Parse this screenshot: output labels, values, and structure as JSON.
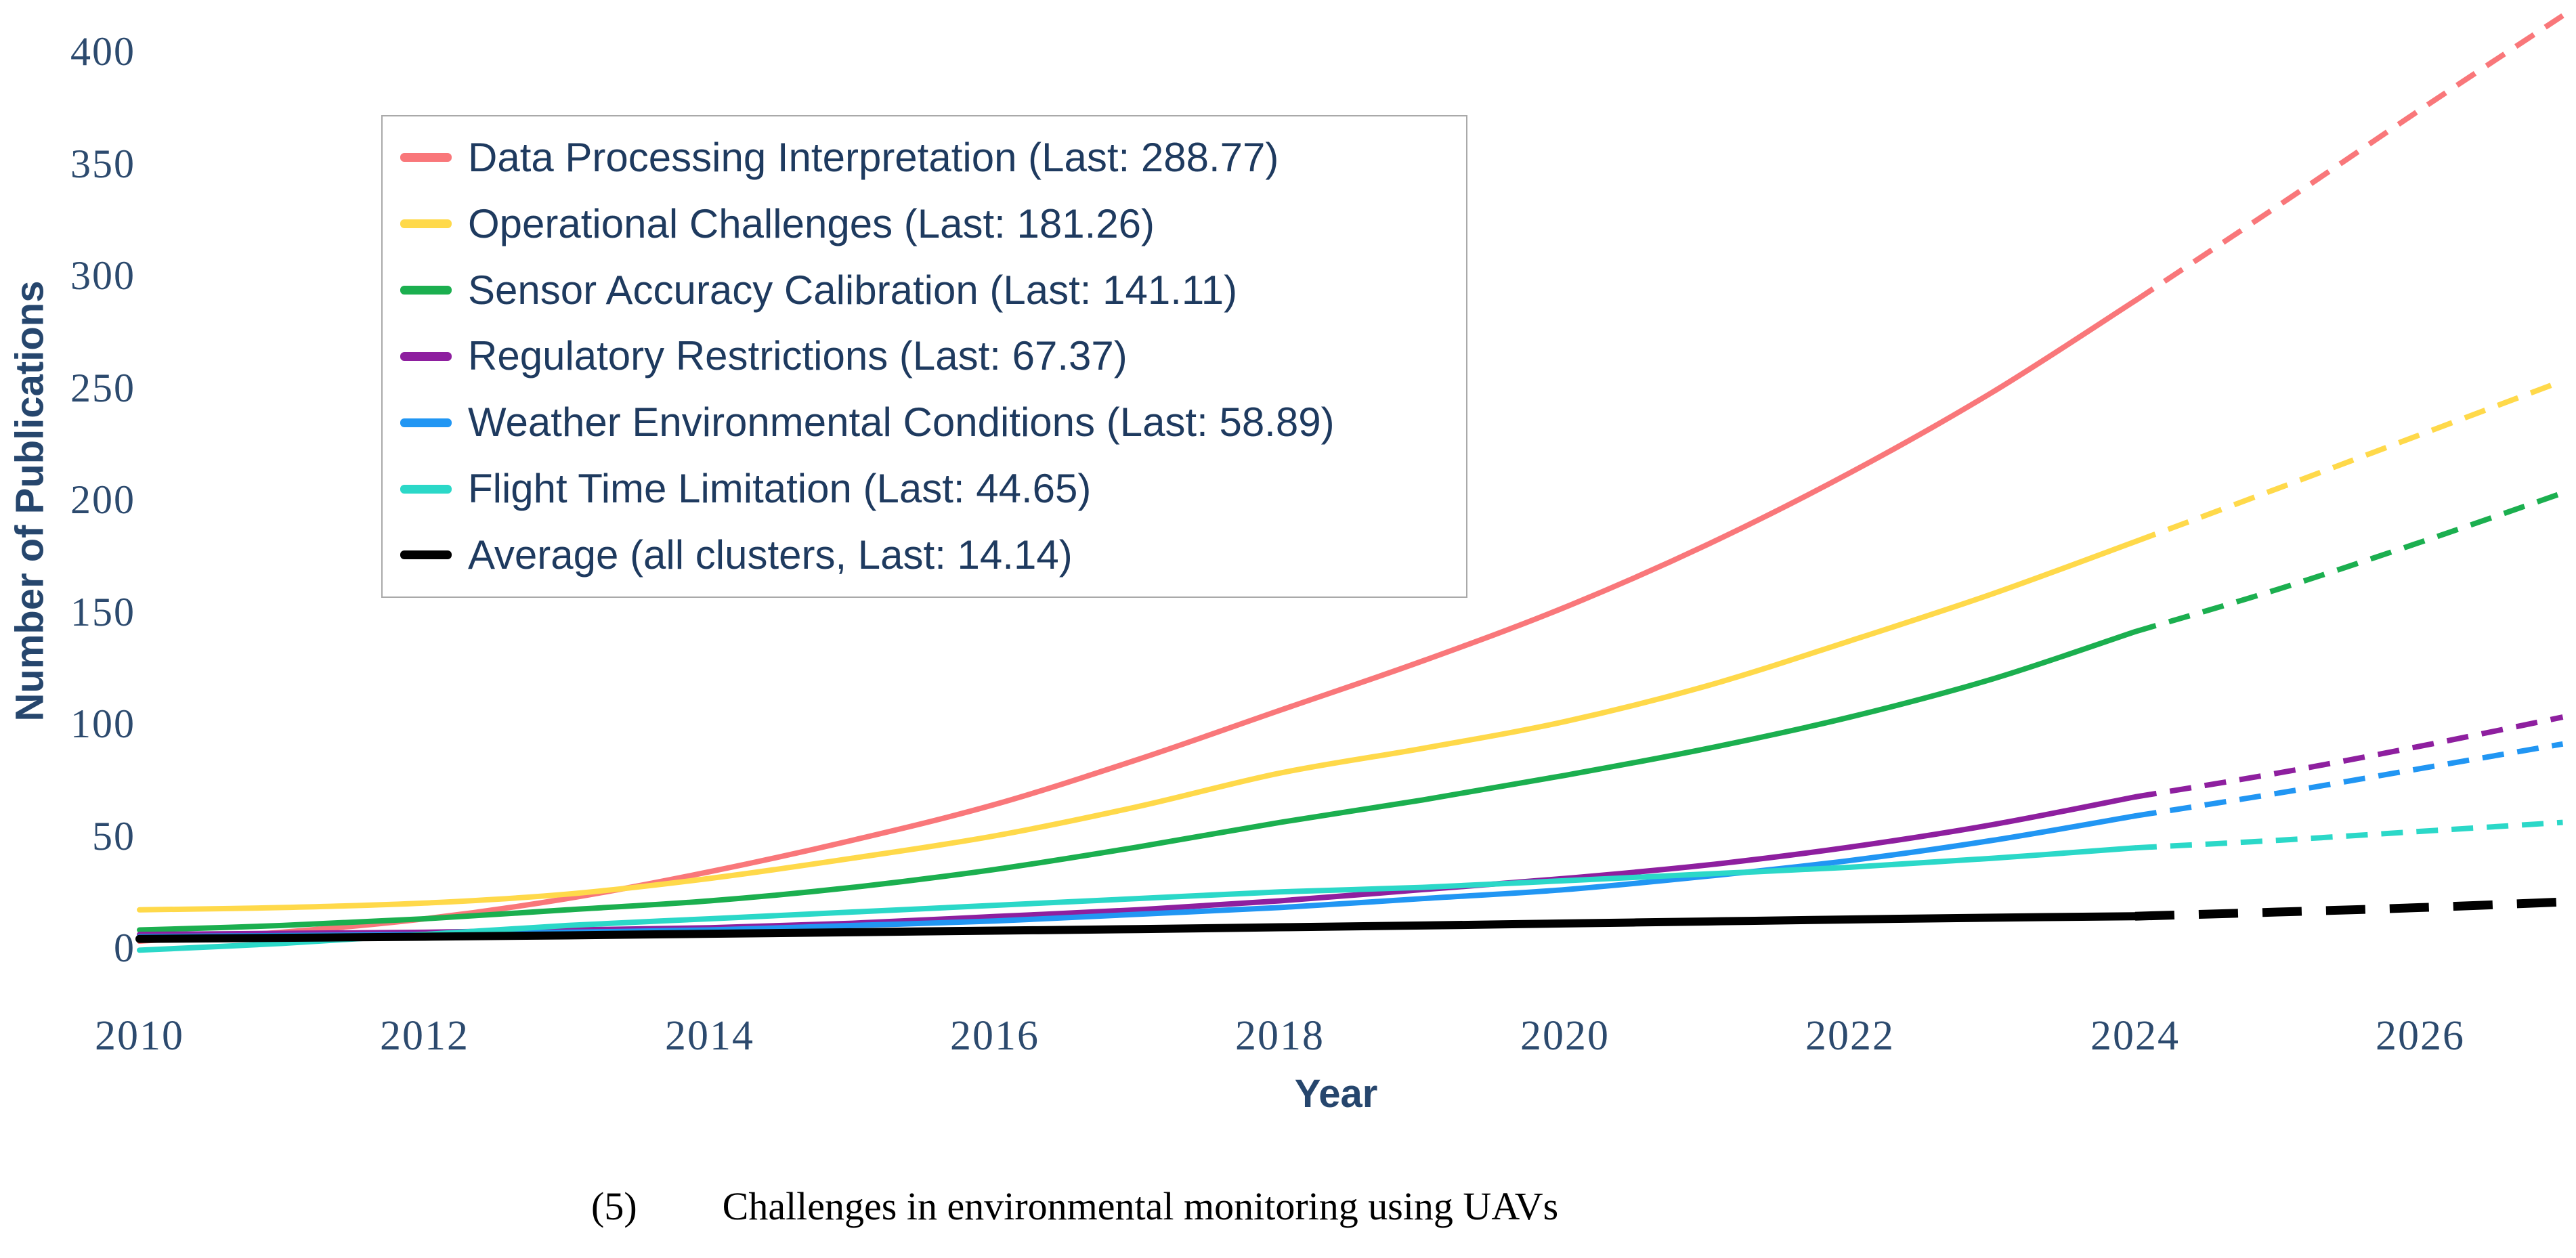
{
  "figure": {
    "caption": {
      "number": "(5)",
      "text": "Challenges in environmental monitoring using UAVs"
    }
  },
  "chart_data": {
    "type": "line",
    "title": "",
    "xlabel": "Year",
    "ylabel": "Number of Publications",
    "grid": false,
    "legend_position": "upper-left",
    "xlim": [
      2010,
      2027.1
    ],
    "ylim": [
      -8,
      420
    ],
    "x_ticks": [
      2010,
      2012,
      2014,
      2016,
      2018,
      2020,
      2022,
      2024,
      2026
    ],
    "y_ticks": [
      0,
      50,
      100,
      150,
      200,
      250,
      300,
      350,
      400
    ],
    "years_solid": [
      2010,
      2011,
      2012,
      2013,
      2014,
      2015,
      2016,
      2017,
      2018,
      2019,
      2020,
      2021,
      2022,
      2023,
      2024
    ],
    "years_forecast": [
      2024,
      2025,
      2026,
      2027
    ],
    "series": [
      {
        "name": "Data Processing Interpretation",
        "legend_label": "Data Processing Interpretation (Last: 288.77)",
        "color": "#F9777A",
        "last": 288.77,
        "thick": false,
        "values": [
          3,
          7,
          13,
          22,
          34,
          48,
          64,
          84,
          106,
          128,
          152,
          180,
          212,
          248,
          288.77
        ],
        "forecast": [
          288.77,
          331,
          374,
          416
        ]
      },
      {
        "name": "Operational Challenges",
        "legend_label": "Operational Challenges (Last: 181.26)",
        "color": "#FFD94A",
        "last": 181.26,
        "thick": false,
        "values": [
          17,
          18,
          20,
          24,
          31,
          40,
          50,
          63,
          78,
          89,
          101,
          117,
          137,
          158,
          181.26
        ],
        "forecast": [
          181.26,
          205,
          229,
          253
        ]
      },
      {
        "name": "Sensor Accuracy Calibration",
        "legend_label": "Sensor Accuracy Calibration (Last: 141.11)",
        "color": "#1BAF4F",
        "last": 141.11,
        "thick": false,
        "values": [
          8,
          10,
          13,
          17,
          21,
          27,
          35,
          45,
          56,
          66,
          77,
          89,
          103,
          120,
          141.11
        ],
        "forecast": [
          141.11,
          160,
          181,
          203
        ]
      },
      {
        "name": "Regulatory Restrictions",
        "legend_label": "Regulatory Restrictions (Last: 67.37)",
        "color": "#8E1F9F",
        "last": 67.37,
        "thick": false,
        "values": [
          6,
          6.5,
          7,
          8,
          9,
          11,
          14,
          17,
          21,
          26,
          31,
          37,
          45,
          55,
          67.37
        ],
        "forecast": [
          67.37,
          78,
          90,
          103
        ]
      },
      {
        "name": "Weather Environmental Conditions",
        "legend_label": "Weather Environmental Conditions (Last: 58.89)",
        "color": "#2196F3",
        "last": 58.89,
        "thick": false,
        "values": [
          5,
          5.5,
          6,
          7,
          8,
          10,
          12,
          15,
          18,
          22,
          26,
          32,
          39,
          48,
          58.89
        ],
        "forecast": [
          58.89,
          69,
          80,
          91
        ]
      },
      {
        "name": "Flight Time Limitation",
        "legend_label": "Flight Time Limitation (Last: 44.65)",
        "color": "#2BD8C8",
        "last": 44.65,
        "thick": false,
        "values": [
          -1,
          2,
          6,
          10,
          13,
          16,
          19,
          22,
          25,
          27,
          30,
          33,
          36,
          40,
          44.65
        ],
        "forecast": [
          44.65,
          48,
          52,
          56
        ]
      },
      {
        "name": "Average (all clusters)",
        "legend_label": "Average (all clusters, Last: 14.14)",
        "color": "#000000",
        "last": 14.14,
        "thick": true,
        "values": [
          4,
          4.5,
          5,
          5.6,
          6.3,
          7,
          7.7,
          8.4,
          9.2,
          10,
          10.9,
          11.8,
          12.7,
          13.5,
          14.14
        ],
        "forecast": [
          14.14,
          16,
          18,
          20.5
        ]
      }
    ]
  }
}
